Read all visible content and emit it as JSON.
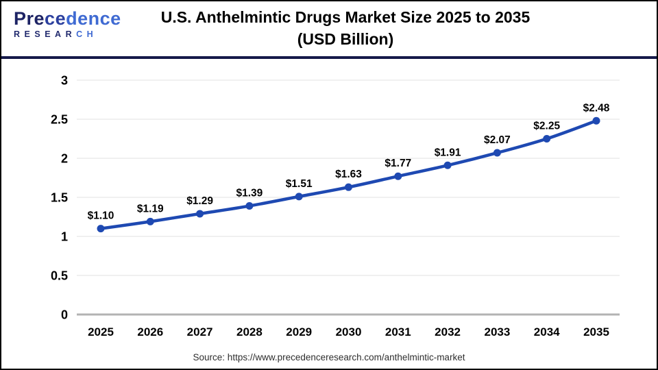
{
  "header": {
    "logo": {
      "name_part1": "Pre",
      "name_part2": "ce",
      "name_part3": "dence",
      "sub_part1": "RESEAR",
      "sub_part2": "CH"
    },
    "title": "U.S. Anthelmintic Drugs Market Size 2025 to 2035",
    "subtitle": "(USD Billion)"
  },
  "chart_data": {
    "type": "line",
    "title": "U.S. Anthelmintic Drugs Market Size 2025 to 2035",
    "subtitle": "(USD Billion)",
    "categories": [
      "2025",
      "2026",
      "2027",
      "2028",
      "2029",
      "2030",
      "2031",
      "2032",
      "2033",
      "2034",
      "2035"
    ],
    "values": [
      1.1,
      1.19,
      1.29,
      1.39,
      1.51,
      1.63,
      1.77,
      1.91,
      2.07,
      2.25,
      2.48
    ],
    "point_labels": [
      "$1.10",
      "$1.19",
      "$1.29",
      "$1.39",
      "$1.51",
      "$1.63",
      "$1.77",
      "$1.91",
      "$2.07",
      "$2.25",
      "$2.48"
    ],
    "xlabel": "",
    "ylabel": "",
    "ylim": [
      0,
      3
    ],
    "yticks": [
      0,
      0.5,
      1,
      1.5,
      2,
      2.5,
      3
    ],
    "ytick_labels": [
      "0",
      "0.5",
      "1",
      "1.5",
      "2",
      "2.5",
      "3"
    ],
    "grid": true,
    "legend": "none",
    "colors": {
      "line": "#1e49b2",
      "point": "#1e49b2",
      "grid": "#e8e8e8",
      "zero_axis": "#b3b3b3",
      "tick_text": "#000000",
      "data_label_text": "#000000"
    }
  },
  "footer": {
    "source_text": "Source: https://www.precedenceresearch.com/anthelmintic-market"
  }
}
